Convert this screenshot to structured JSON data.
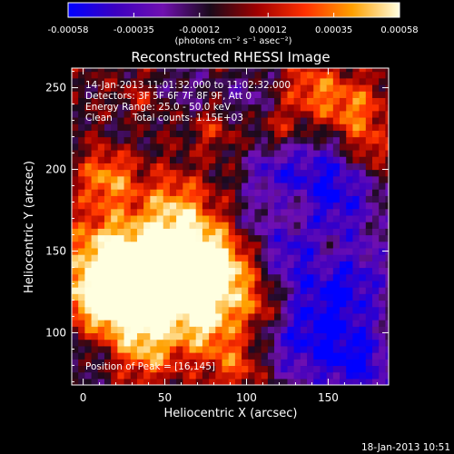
{
  "chart_data": {
    "type": "heatmap",
    "title": "Reconstructed RHESSI Image",
    "xlabel": "Heliocentric X (arcsec)",
    "ylabel": "Heliocentric Y (arcsec)",
    "xlim": [
      -7,
      187
    ],
    "ylim": [
      68,
      262
    ],
    "x_ticks": [
      0,
      50,
      100,
      150
    ],
    "y_ticks": [
      100,
      150,
      200,
      250
    ],
    "colorbar": {
      "ticks": [
        -0.00058,
        -0.00035,
        -0.00012,
        0.00012,
        0.00035,
        0.00058
      ],
      "tick_labels": [
        "-0.00058",
        "-0.00035",
        "-0.00012",
        "0.00012",
        "0.00035",
        "0.00058"
      ],
      "unit_label": "(photons cm⁻² s⁻¹ asec⁻²)",
      "range": [
        -0.00058,
        0.00058
      ],
      "colors": [
        "#0000ff",
        "#3c00c0",
        "#7010b0",
        "#1a0a1a",
        "#a00000",
        "#ff3000",
        "#ffa000",
        "#ffffe0"
      ]
    },
    "annotations": {
      "time": "14-Jan-2013 11:01:32.000 to 11:02:32.000",
      "detectors": "Detectors: 3F 5F 6F 7F 8F 9F, Att 0",
      "energy": "Energy Range: 25.0 - 50.0 keV",
      "clean_label": "Clean",
      "counts": "Total counts: 1.15E+03",
      "peak": "Position of Peak = [16,145]"
    },
    "peak": {
      "x": 16,
      "y": 145
    },
    "grid": false
  },
  "footer": {
    "date": "18-Jan-2013 10:51"
  }
}
